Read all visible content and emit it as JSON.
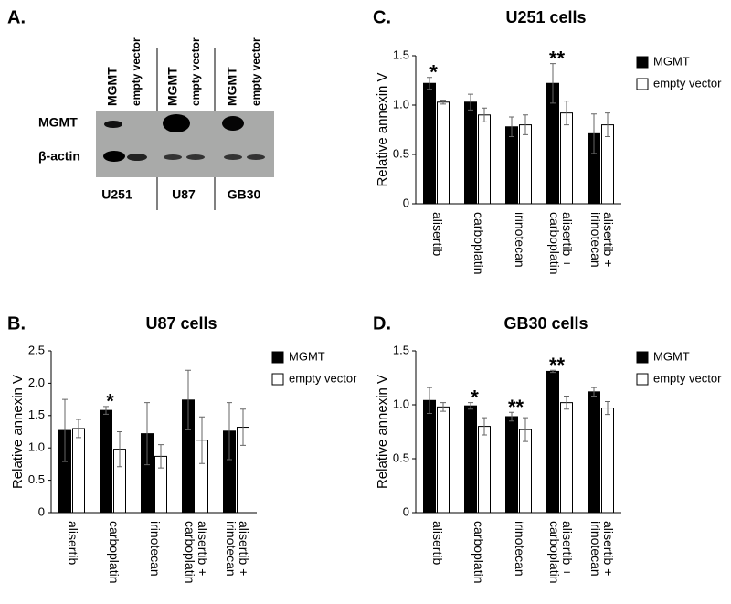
{
  "blot": {
    "panel_label": "A.",
    "lanes": [
      "MGMT",
      "empty vector",
      "MGMT",
      "empty vector",
      "MGMT",
      "empty vector"
    ],
    "proteins": [
      "MGMT",
      "β-actin"
    ],
    "cell_lines": [
      "U251",
      "U87",
      "GB30"
    ]
  },
  "chart_data": [
    {
      "type": "bar",
      "panel_label": "C.",
      "title": "U251 cells",
      "y_label": "Relative annexin V",
      "categories": [
        [
          "alisertib"
        ],
        [
          "carboplatin"
        ],
        [
          "irinotecan"
        ],
        [
          "alisertib +",
          "carboplatin"
        ],
        [
          "alisertib +",
          "irinotecan"
        ]
      ],
      "series": [
        {
          "name": "MGMT",
          "color": "#000000",
          "values": [
            1.22,
            1.03,
            0.78,
            1.22,
            0.71
          ],
          "errors": [
            0.06,
            0.08,
            0.1,
            0.2,
            0.2
          ]
        },
        {
          "name": "empty vector",
          "color": "#ffffff",
          "values": [
            1.03,
            0.9,
            0.8,
            0.92,
            0.8
          ],
          "errors": [
            0.02,
            0.07,
            0.1,
            0.12,
            0.12
          ]
        }
      ],
      "annotations": [
        "*",
        null,
        null,
        "**",
        null
      ],
      "ylim": [
        0,
        1.5
      ],
      "yticks": [
        0,
        0.5,
        {
          "value": 1,
          "label": "1.0"
        },
        1.5
      ]
    },
    {
      "type": "bar",
      "panel_label": "B.",
      "title": "U87 cells",
      "y_label": "Relative annexin V",
      "categories": [
        [
          "alisertib"
        ],
        [
          "carboplatin"
        ],
        [
          "irinotecan"
        ],
        [
          "alisertib +",
          "carboplatin"
        ],
        [
          "alisertib +",
          "irinotecan"
        ]
      ],
      "series": [
        {
          "name": "MGMT",
          "color": "#000000",
          "values": [
            1.27,
            1.58,
            1.22,
            1.74,
            1.26
          ],
          "errors": [
            0.48,
            0.06,
            0.48,
            0.46,
            0.44
          ]
        },
        {
          "name": "empty vector",
          "color": "#ffffff",
          "values": [
            1.3,
            0.98,
            0.87,
            1.12,
            1.32
          ],
          "errors": [
            0.14,
            0.27,
            0.18,
            0.36,
            0.28
          ]
        }
      ],
      "annotations": [
        null,
        "*",
        null,
        null,
        null
      ],
      "ylim": [
        0,
        2.5
      ],
      "yticks": [
        0,
        0.5,
        {
          "value": 1,
          "label": "1.0"
        },
        1.5,
        {
          "value": 2,
          "label": "2.0"
        },
        2.5
      ]
    },
    {
      "type": "bar",
      "panel_label": "D.",
      "title": "GB30 cells",
      "y_label": "Relative annexin V",
      "categories": [
        [
          "alisertib"
        ],
        [
          "carboplatin"
        ],
        [
          "irinotecan"
        ],
        [
          "alisertib +",
          "carboplatin"
        ],
        [
          "alisertib +",
          "irinotecan"
        ]
      ],
      "series": [
        {
          "name": "MGMT",
          "color": "#000000",
          "values": [
            1.04,
            0.99,
            0.89,
            1.31,
            1.12
          ],
          "errors": [
            0.12,
            0.03,
            0.04,
            0.01,
            0.04
          ]
        },
        {
          "name": "empty vector",
          "color": "#ffffff",
          "values": [
            0.98,
            0.8,
            0.77,
            1.02,
            0.97
          ],
          "errors": [
            0.04,
            0.08,
            0.11,
            0.06,
            0.06
          ]
        }
      ],
      "annotations": [
        null,
        "*",
        "**",
        "**",
        null
      ],
      "ylim": [
        0,
        1.5
      ],
      "yticks": [
        0,
        0.5,
        {
          "value": 1,
          "label": "1.0"
        },
        1.5
      ]
    }
  ]
}
